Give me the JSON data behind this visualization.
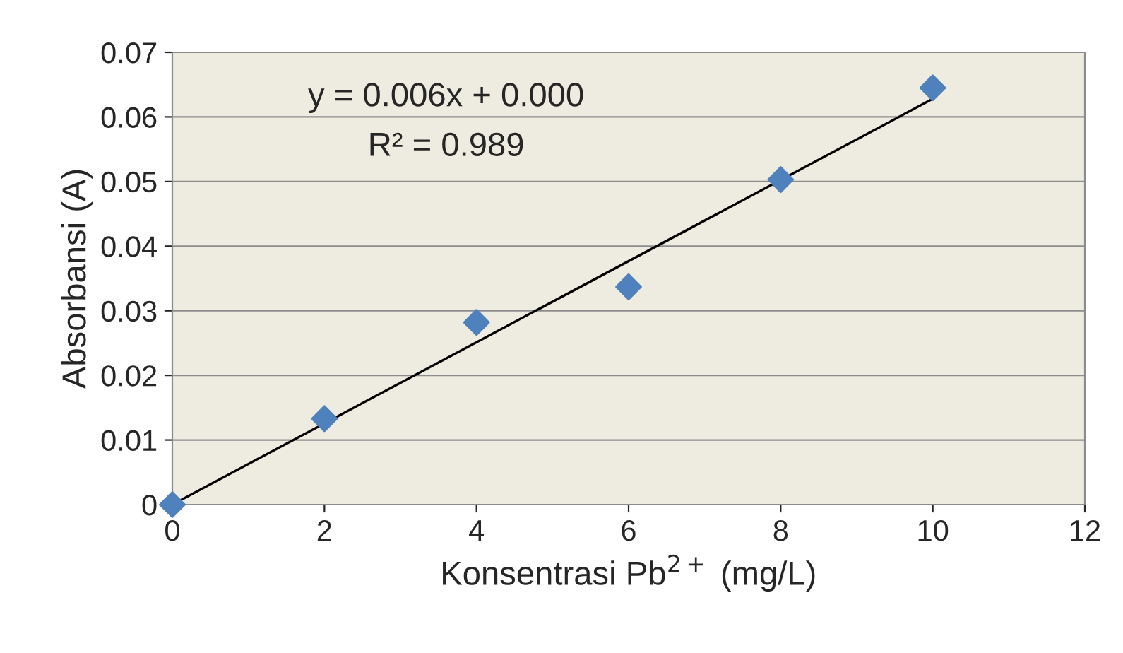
{
  "chart_data": {
    "type": "scatter",
    "xlabel": "Konsentrasi Pb$^{2+}$ (mg/L)",
    "ylabel": "Absorbansi (A)",
    "series": [
      {
        "color": "#4f81bd",
        "marker": "diamond",
        "x": [
          0,
          2,
          4,
          6,
          8,
          10
        ],
        "values": [
          0,
          0.0133,
          0.0282,
          0.0337,
          0.0503,
          0.0645
        ]
      },
      {
        "type": "line",
        "color": "#000000",
        "marker": "none",
        "line_style": "solid",
        "x": [
          0,
          10
        ],
        "values": [
          0,
          0.0628
        ]
      }
    ],
    "annotations": [
      "y = 0.006x + 0.000",
      "R² = 0.989"
    ],
    "xlim": [
      0,
      12
    ],
    "xticks": [
      0,
      2,
      4,
      6,
      8,
      10,
      12
    ],
    "ylim": [
      0,
      0.07
    ],
    "yticks": [
      {
        "value": 0,
        "label": "0"
      },
      0.01,
      0.02,
      0.03,
      0.04,
      0.05,
      0.06,
      0.07
    ],
    "grid": "y",
    "legend": false
  }
}
